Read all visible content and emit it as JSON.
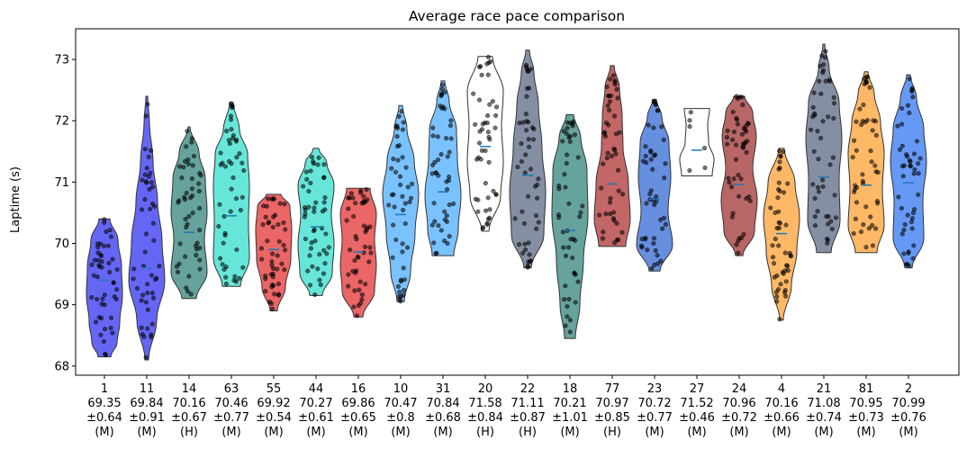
{
  "chart_data": {
    "type": "violin",
    "title": "Average race pace comparison",
    "xlabel": "",
    "ylabel": "Laptime (s)",
    "ylim": [
      67.85,
      73.5
    ],
    "yticks": [
      68,
      69,
      70,
      71,
      72,
      73
    ],
    "grid": false,
    "legend": "none",
    "series": [
      {
        "driver": "1",
        "mean": "69.35",
        "std": "±0.64",
        "compound": "(M)",
        "median": 69.4,
        "min": 68.15,
        "max": 70.4,
        "color": "#0000ee",
        "shape": [
          [
            0,
            0.35
          ],
          [
            0.1,
            0.7
          ],
          [
            0.25,
            0.85
          ],
          [
            0.45,
            1.0
          ],
          [
            0.65,
            0.95
          ],
          [
            0.85,
            0.75
          ],
          [
            1,
            0.3
          ]
        ]
      },
      {
        "driver": "11",
        "mean": "69.84",
        "std": "±0.91",
        "compound": "(M)",
        "median": 69.6,
        "min": 68.1,
        "max": 72.4,
        "color": "#0000ee",
        "shape": [
          [
            0,
            0.1
          ],
          [
            0.15,
            0.55
          ],
          [
            0.3,
            1.0
          ],
          [
            0.45,
            0.85
          ],
          [
            0.6,
            0.6
          ],
          [
            0.75,
            0.35
          ],
          [
            0.9,
            0.15
          ],
          [
            1,
            0.05
          ]
        ]
      },
      {
        "driver": "14",
        "mean": "70.16",
        "std": "±0.67",
        "compound": "(H)",
        "median": 70.18,
        "min": 69.1,
        "max": 71.9,
        "color": "#00665a",
        "shape": [
          [
            0,
            0.4
          ],
          [
            0.15,
            1.0
          ],
          [
            0.35,
            0.85
          ],
          [
            0.5,
            1.0
          ],
          [
            0.7,
            0.9
          ],
          [
            0.85,
            0.55
          ],
          [
            1,
            0.05
          ]
        ]
      },
      {
        "driver": "63",
        "mean": "70.46",
        "std": "±0.77",
        "compound": "(M)",
        "median": 70.45,
        "min": 69.3,
        "max": 72.3,
        "color": "#00d6c0",
        "shape": [
          [
            0,
            0.5
          ],
          [
            0.15,
            1.0
          ],
          [
            0.35,
            0.95
          ],
          [
            0.55,
            1.0
          ],
          [
            0.72,
            0.9
          ],
          [
            0.85,
            0.45
          ],
          [
            1,
            0.1
          ]
        ]
      },
      {
        "driver": "55",
        "mean": "69.92",
        "std": "±0.54",
        "compound": "(M)",
        "median": 69.9,
        "min": 68.9,
        "max": 70.8,
        "color": "#dd0000",
        "shape": [
          [
            0,
            0.2
          ],
          [
            0.2,
            0.65
          ],
          [
            0.45,
            0.95
          ],
          [
            0.7,
            1.0
          ],
          [
            0.9,
            0.9
          ],
          [
            1,
            0.4
          ]
        ]
      },
      {
        "driver": "44",
        "mean": "70.27",
        "std": "±0.61",
        "compound": "(M)",
        "median": 70.27,
        "min": 69.15,
        "max": 71.55,
        "color": "#00d6c0",
        "shape": [
          [
            0,
            0.35
          ],
          [
            0.15,
            0.9
          ],
          [
            0.35,
            1.0
          ],
          [
            0.55,
            0.85
          ],
          [
            0.75,
            1.0
          ],
          [
            0.9,
            0.6
          ],
          [
            1,
            0.15
          ]
        ]
      },
      {
        "driver": "16",
        "mean": "69.86",
        "std": "±0.65",
        "compound": "(M)",
        "median": 69.86,
        "min": 68.8,
        "max": 70.9,
        "color": "#dd0000",
        "shape": [
          [
            0,
            0.25
          ],
          [
            0.2,
            0.9
          ],
          [
            0.4,
            1.0
          ],
          [
            0.6,
            0.9
          ],
          [
            0.8,
            1.0
          ],
          [
            1,
            0.65
          ]
        ]
      },
      {
        "driver": "10",
        "mean": "70.47",
        "std": "±0.8",
        "compound": "(M)",
        "median": 70.47,
        "min": 69.05,
        "max": 72.25,
        "color": "#2299ff",
        "shape": [
          [
            0,
            0.2
          ],
          [
            0.15,
            0.55
          ],
          [
            0.35,
            0.8
          ],
          [
            0.55,
            1.0
          ],
          [
            0.72,
            0.75
          ],
          [
            0.88,
            0.35
          ],
          [
            1,
            0.1
          ]
        ]
      },
      {
        "driver": "31",
        "mean": "70.84",
        "std": "±0.68",
        "compound": "(M)",
        "median": 70.84,
        "min": 69.8,
        "max": 72.65,
        "color": "#2299ff",
        "shape": [
          [
            0,
            0.6
          ],
          [
            0.15,
            0.85
          ],
          [
            0.35,
            1.0
          ],
          [
            0.55,
            0.8
          ],
          [
            0.72,
            0.75
          ],
          [
            0.88,
            0.35
          ],
          [
            1,
            0.1
          ]
        ]
      },
      {
        "driver": "20",
        "mean": "71.58",
        "std": "±0.84",
        "compound": "(H)",
        "median": 71.58,
        "min": 70.2,
        "max": 73.05,
        "color": "#ffffff",
        "shape": [
          [
            0,
            0.2
          ],
          [
            0.2,
            0.85
          ],
          [
            0.4,
            1.0
          ],
          [
            0.6,
            0.9
          ],
          [
            0.8,
            1.0
          ],
          [
            1,
            0.4
          ]
        ]
      },
      {
        "driver": "22",
        "mean": "71.11",
        "std": "±0.87",
        "compound": "(H)",
        "median": 71.11,
        "min": 69.6,
        "max": 73.15,
        "color": "#334466",
        "shape": [
          [
            0,
            0.2
          ],
          [
            0.15,
            0.9
          ],
          [
            0.35,
            1.0
          ],
          [
            0.55,
            0.8
          ],
          [
            0.75,
            0.6
          ],
          [
            0.9,
            0.35
          ],
          [
            1,
            0.1
          ]
        ]
      },
      {
        "driver": "18",
        "mean": "70.21",
        "std": "±1.01",
        "compound": "(M)",
        "median": 70.21,
        "min": 68.45,
        "max": 72.1,
        "color": "#00665a",
        "shape": [
          [
            0,
            0.3
          ],
          [
            0.15,
            0.55
          ],
          [
            0.35,
            0.75
          ],
          [
            0.55,
            1.0
          ],
          [
            0.75,
            0.95
          ],
          [
            0.9,
            0.6
          ],
          [
            1,
            0.2
          ]
        ]
      },
      {
        "driver": "77",
        "mean": "70.97",
        "std": "±0.85",
        "compound": "(H)",
        "median": 70.97,
        "min": 69.95,
        "max": 72.9,
        "color": "#990000",
        "shape": [
          [
            0,
            0.75
          ],
          [
            0.15,
            1.0
          ],
          [
            0.35,
            0.9
          ],
          [
            0.55,
            0.6
          ],
          [
            0.72,
            0.55
          ],
          [
            0.88,
            0.4
          ],
          [
            1,
            0.1
          ]
        ]
      },
      {
        "driver": "23",
        "mean": "70.72",
        "std": "±0.77",
        "compound": "(M)",
        "median": 70.72,
        "min": 69.55,
        "max": 72.35,
        "color": "#0044cc",
        "shape": [
          [
            0,
            0.3
          ],
          [
            0.15,
            1.0
          ],
          [
            0.35,
            0.75
          ],
          [
            0.55,
            0.9
          ],
          [
            0.75,
            0.8
          ],
          [
            0.9,
            0.4
          ],
          [
            1,
            0.1
          ]
        ]
      },
      {
        "driver": "27",
        "mean": "71.52",
        "std": "±0.46",
        "compound": "(M)",
        "median": 71.52,
        "min": 71.1,
        "max": 72.2,
        "color": "#ffffff",
        "shape": [
          [
            0,
            0.85
          ],
          [
            0.25,
            0.95
          ],
          [
            0.5,
            0.65
          ],
          [
            0.75,
            0.6
          ],
          [
            1,
            0.7
          ]
        ]
      },
      {
        "driver": "24",
        "mean": "70.96",
        "std": "±0.72",
        "compound": "(M)",
        "median": 70.96,
        "min": 69.8,
        "max": 72.4,
        "color": "#880000",
        "shape": [
          [
            0,
            0.2
          ],
          [
            0.15,
            0.85
          ],
          [
            0.35,
            1.0
          ],
          [
            0.55,
            0.75
          ],
          [
            0.75,
            0.95
          ],
          [
            0.9,
            0.75
          ],
          [
            1,
            0.3
          ]
        ]
      },
      {
        "driver": "4",
        "mean": "70.16",
        "std": "±0.66",
        "compound": "(M)",
        "median": 70.16,
        "min": 68.75,
        "max": 71.55,
        "color": "#ff8800",
        "shape": [
          [
            0,
            0.1
          ],
          [
            0.2,
            0.55
          ],
          [
            0.4,
            0.85
          ],
          [
            0.6,
            1.0
          ],
          [
            0.8,
            0.75
          ],
          [
            1,
            0.15
          ]
        ]
      },
      {
        "driver": "21",
        "mean": "71.08",
        "std": "±0.74",
        "compound": "(M)",
        "median": 71.08,
        "min": 69.85,
        "max": 73.25,
        "color": "#334466",
        "shape": [
          [
            0,
            0.4
          ],
          [
            0.15,
            0.9
          ],
          [
            0.35,
            0.85
          ],
          [
            0.55,
            1.0
          ],
          [
            0.72,
            0.85
          ],
          [
            0.88,
            0.3
          ],
          [
            1,
            0.05
          ]
        ]
      },
      {
        "driver": "81",
        "mean": "70.95",
        "std": "±0.73",
        "compound": "(M)",
        "median": 70.95,
        "min": 69.85,
        "max": 72.8,
        "color": "#ff8800",
        "shape": [
          [
            0,
            0.6
          ],
          [
            0.15,
            1.0
          ],
          [
            0.35,
            0.9
          ],
          [
            0.55,
            1.0
          ],
          [
            0.72,
            0.8
          ],
          [
            0.88,
            0.45
          ],
          [
            1,
            0.1
          ]
        ]
      },
      {
        "driver": "2",
        "mean": "70.99",
        "std": "±0.76",
        "compound": "(M)",
        "median": 70.99,
        "min": 69.6,
        "max": 72.75,
        "color": "#0055ee",
        "shape": [
          [
            0,
            0.2
          ],
          [
            0.15,
            0.85
          ],
          [
            0.35,
            0.8
          ],
          [
            0.55,
            1.0
          ],
          [
            0.72,
            0.85
          ],
          [
            0.88,
            0.45
          ],
          [
            1,
            0.1
          ]
        ]
      }
    ]
  }
}
